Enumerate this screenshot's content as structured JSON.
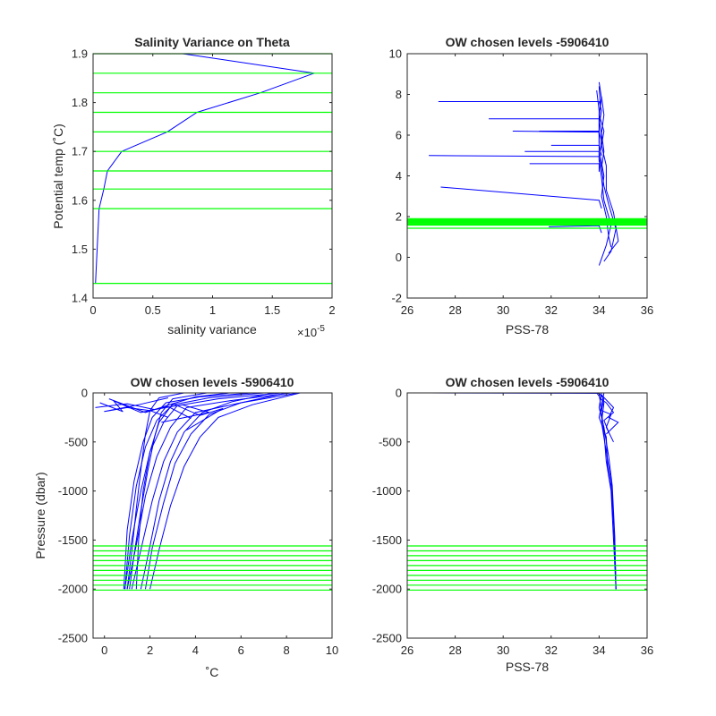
{
  "colors": {
    "data": "#0000ff",
    "levels": "#00ff00",
    "axis": "#262626"
  },
  "chart_data": [
    {
      "id": "p1",
      "type": "line",
      "title": "Salinity Variance on Theta",
      "xlabel": "salinity variance",
      "ylabel": "Potential temp (˚C)",
      "xlim": [
        0,
        2
      ],
      "ylim": [
        1.4,
        1.9
      ],
      "xticks": [
        "0",
        "0.5",
        "1",
        "1.5",
        "2"
      ],
      "xtick_values": [
        0,
        0.5,
        1,
        1.5,
        2
      ],
      "yticks": [
        "1.4",
        "1.5",
        "1.6",
        "1.7",
        "1.8",
        "1.9"
      ],
      "ytick_values": [
        1.4,
        1.5,
        1.6,
        1.7,
        1.8,
        1.9
      ],
      "x_exponent_base": "×10",
      "x_exponent_power": "-5",
      "series": [
        {
          "x": [
            0.02,
            0.05,
            0.09,
            0.12,
            0.24,
            0.62,
            0.87,
            1.4,
            1.85,
            0.75
          ],
          "y": [
            1.43,
            1.583,
            1.623,
            1.66,
            1.7,
            1.74,
            1.78,
            1.82,
            1.86,
            1.9
          ]
        }
      ],
      "hlines": [
        1.43,
        1.583,
        1.623,
        1.66,
        1.7,
        1.74,
        1.78,
        1.82,
        1.86,
        1.9
      ]
    },
    {
      "id": "p2",
      "type": "line",
      "title": "OW chosen levels -5906410",
      "xlabel": "PSS-78",
      "ylabel": "",
      "xlim": [
        26,
        36
      ],
      "ylim": [
        -2,
        10
      ],
      "xticks": [
        "26",
        "28",
        "30",
        "32",
        "34",
        "36"
      ],
      "xtick_values": [
        26,
        28,
        30,
        32,
        34,
        36
      ],
      "yticks": [
        "-2",
        "0",
        "2",
        "4",
        "6",
        "8",
        "10"
      ],
      "ytick_values": [
        -2,
        0,
        2,
        4,
        6,
        8,
        10
      ],
      "series": [
        {
          "x": [
            34.0,
            34.05,
            34.0,
            34.1,
            34.05,
            34.2,
            34.1,
            34.3,
            34.4,
            34.5
          ],
          "y": [
            8.4,
            7.5,
            6.8,
            6.0,
            5.0,
            4.0,
            3.0,
            2.0,
            1.0,
            0.5
          ]
        },
        {
          "x": [
            34.0,
            34.1,
            34.0,
            34.2,
            34.1,
            34.3,
            34.3,
            34.6,
            34.8,
            34.4
          ],
          "y": [
            8.6,
            7.8,
            7.0,
            6.2,
            5.5,
            4.5,
            3.3,
            2.2,
            0.8,
            0.2
          ]
        },
        {
          "x": [
            33.9,
            34.0,
            34.0,
            34.0,
            34.0,
            34.1,
            34.2,
            34.5,
            34.3,
            34.0
          ],
          "y": [
            8.2,
            7.2,
            6.4,
            5.6,
            4.8,
            3.9,
            2.8,
            1.6,
            0.6,
            -0.4
          ]
        },
        {
          "x": [
            34.1,
            34.2,
            34.1,
            34.2,
            34.1,
            34.2,
            34.4,
            34.7,
            34.5,
            34.2
          ],
          "y": [
            7.9,
            7.0,
            6.1,
            5.2,
            4.4,
            3.5,
            2.6,
            1.4,
            0.3,
            -0.2
          ]
        },
        {
          "x": [
            27.3,
            34.0,
            34.1,
            34.0
          ],
          "y": [
            7.65,
            7.65,
            7.2,
            6.5
          ]
        },
        {
          "x": [
            29.4,
            34.0,
            34.0
          ],
          "y": [
            6.8,
            6.8,
            6.0
          ]
        },
        {
          "x": [
            30.4,
            34.0,
            34.1
          ],
          "y": [
            6.2,
            6.15,
            5.7
          ]
        },
        {
          "x": [
            31.5,
            34.0,
            34.0
          ],
          "y": [
            6.2,
            6.2,
            5.6
          ]
        },
        {
          "x": [
            32.0,
            34.0,
            34.1
          ],
          "y": [
            5.5,
            5.5,
            5.0
          ]
        },
        {
          "x": [
            30.9,
            34.0,
            34.0
          ],
          "y": [
            5.2,
            5.2,
            4.7
          ]
        },
        {
          "x": [
            26.9,
            34.0,
            34.1
          ],
          "y": [
            5.0,
            4.95,
            4.4
          ]
        },
        {
          "x": [
            31.1,
            34.0,
            34.0
          ],
          "y": [
            4.6,
            4.6,
            4.2
          ]
        },
        {
          "x": [
            27.4,
            34.0,
            34.1
          ],
          "y": [
            3.45,
            2.8,
            2.4
          ]
        },
        {
          "x": [
            31.9,
            34.0,
            34.1
          ],
          "y": [
            1.5,
            1.55,
            1.2
          ]
        }
      ],
      "hlines": [
        1.43,
        1.583,
        1.623,
        1.66,
        1.7,
        1.74,
        1.78,
        1.82,
        1.86,
        1.9
      ]
    },
    {
      "id": "p3",
      "type": "line",
      "title": "OW chosen levels -5906410",
      "xlabel": "˚C",
      "ylabel": "Pressure (dbar)",
      "xlim": [
        -0.5,
        10
      ],
      "ylim": [
        -2500,
        0
      ],
      "xticks": [
        "0",
        "2",
        "4",
        "6",
        "8",
        "10"
      ],
      "xtick_values": [
        0,
        2,
        4,
        6,
        8,
        10
      ],
      "yticks": [
        "-2500",
        "-2000",
        "-1500",
        "-1000",
        "-500",
        "0"
      ],
      "ytick_values": [
        -2500,
        -2000,
        -1500,
        -1000,
        -500,
        0
      ],
      "series": [
        {
          "x": [
            8.5,
            6.0,
            4.0,
            3.2,
            2.6,
            2.1,
            1.6,
            1.2
          ],
          "y": [
            0,
            -100,
            -200,
            -400,
            -700,
            -1100,
            -1600,
            -2000
          ]
        },
        {
          "x": [
            8.2,
            5.5,
            3.6,
            2.9,
            2.3,
            1.8,
            1.4,
            1.0
          ],
          "y": [
            0,
            -80,
            -150,
            -350,
            -650,
            -1050,
            -1550,
            -2000
          ]
        },
        {
          "x": [
            7.8,
            5.0,
            3.2,
            2.6,
            2.0,
            1.6,
            1.2,
            0.9
          ],
          "y": [
            0,
            -60,
            -130,
            -300,
            -600,
            -1000,
            -1500,
            -2000
          ]
        },
        {
          "x": [
            7.0,
            4.6,
            3.0,
            2.3,
            1.8,
            1.4,
            1.1,
            0.9
          ],
          "y": [
            0,
            -50,
            -120,
            -280,
            -550,
            -950,
            -1450,
            -2000
          ]
        },
        {
          "x": [
            6.5,
            4.2,
            2.7,
            2.1,
            1.7,
            1.3,
            1.0,
            0.85
          ],
          "y": [
            0,
            -40,
            -100,
            -250,
            -500,
            -900,
            -1400,
            -2000
          ]
        },
        {
          "x": [
            8.6,
            6.5,
            5.0,
            4.2,
            3.5,
            2.9,
            2.4,
            2.0
          ],
          "y": [
            0,
            -120,
            -250,
            -450,
            -750,
            -1150,
            -1600,
            -2000
          ]
        },
        {
          "x": [
            8.0,
            6.0,
            4.6,
            3.8,
            3.1,
            2.6,
            2.1,
            1.8
          ],
          "y": [
            0,
            -100,
            -220,
            -420,
            -720,
            -1120,
            -1580,
            -2000
          ]
        },
        {
          "x": [
            7.4,
            5.6,
            4.3,
            3.5,
            2.9,
            2.4,
            2.0,
            1.6
          ],
          "y": [
            0,
            -90,
            -200,
            -400,
            -700,
            -1100,
            -1560,
            -2000
          ]
        },
        {
          "x": [
            5.5,
            4.0,
            3.0,
            2.4,
            2.0,
            1.7,
            1.5,
            1.4
          ],
          "y": [
            0,
            -40,
            -110,
            -300,
            -600,
            -1000,
            -1500,
            -2000
          ]
        },
        {
          "x": [
            4.5,
            3.0,
            2.5,
            2.2,
            1.9,
            1.6,
            1.3,
            1.1
          ],
          "y": [
            0,
            -60,
            -200,
            -450,
            -800,
            -1200,
            -1650,
            -2000
          ]
        },
        {
          "x": [
            3.5,
            2.4,
            2.0,
            1.8,
            1.6,
            1.4,
            1.2,
            1.0
          ],
          "y": [
            0,
            -50,
            -180,
            -420,
            -780,
            -1180,
            -1620,
            -2000
          ]
        },
        {
          "x": [
            2.8,
            1.5,
            0.0,
            1.0,
            2.0,
            2.8
          ],
          "y": [
            -50,
            -120,
            -190,
            -150,
            -180,
            -250
          ]
        },
        {
          "x": [
            -0.4,
            1.0,
            2.2,
            3.4,
            4.6,
            2.5
          ],
          "y": [
            -150,
            -110,
            -170,
            -120,
            -200,
            -300
          ]
        },
        {
          "x": [
            -0.2,
            0.8,
            0.4,
            1.6,
            2.8,
            3.8
          ],
          "y": [
            -100,
            -190,
            -80,
            -200,
            -140,
            -260
          ]
        },
        {
          "x": [
            0.2,
            1.8,
            3.0,
            4.2,
            5.2,
            3.6
          ],
          "y": [
            -60,
            -200,
            -110,
            -230,
            -160,
            -380
          ]
        }
      ],
      "hlines": [
        -1560,
        -1610,
        -1660,
        -1710,
        -1760,
        -1810,
        -1860,
        -1910,
        -1960,
        -2010
      ]
    },
    {
      "id": "p4",
      "type": "line",
      "title": "OW chosen levels -5906410",
      "xlabel": "PSS-78",
      "ylabel": "",
      "xlim": [
        26,
        36
      ],
      "ylim": [
        -2500,
        0
      ],
      "xticks": [
        "26",
        "28",
        "30",
        "32",
        "34",
        "36"
      ],
      "xtick_values": [
        26,
        28,
        30,
        32,
        34,
        36
      ],
      "yticks": [
        "-2500",
        "-2000",
        "-1500",
        "-1000",
        "-500",
        "0"
      ],
      "ytick_values": [
        -2500,
        -2000,
        -1500,
        -1000,
        -500,
        0
      ],
      "series": [
        {
          "x": [
            34.0,
            34.1,
            34.2,
            34.3,
            34.5,
            34.6,
            34.7
          ],
          "y": [
            0,
            -200,
            -400,
            -700,
            -1000,
            -1500,
            -2000
          ]
        },
        {
          "x": [
            34.1,
            34.0,
            34.2,
            34.4,
            34.55,
            34.65,
            34.7
          ],
          "y": [
            0,
            -150,
            -350,
            -650,
            -950,
            -1450,
            -2000
          ]
        },
        {
          "x": [
            33.9,
            34.2,
            34.1,
            34.3,
            34.5,
            34.62,
            34.7
          ],
          "y": [
            0,
            -100,
            -300,
            -600,
            -900,
            -1400,
            -2000
          ]
        },
        {
          "x": [
            34.2,
            34.0,
            34.3,
            34.35,
            34.55,
            34.66,
            34.7
          ],
          "y": [
            0,
            -250,
            -450,
            -750,
            -1050,
            -1550,
            -2000
          ]
        },
        {
          "x": [
            34.0,
            34.3,
            34.6,
            34.2,
            34.4
          ],
          "y": [
            -50,
            -100,
            -200,
            -280,
            -400
          ]
        },
        {
          "x": [
            34.1,
            34.6,
            34.4,
            34.8,
            34.3
          ],
          "y": [
            -20,
            -150,
            -250,
            -300,
            -420
          ]
        },
        {
          "x": [
            34.2,
            34.1,
            34.5,
            34.3,
            34.6
          ],
          "y": [
            -60,
            -180,
            -220,
            -350,
            -500
          ]
        },
        {
          "x": [
            26.9,
            34.0,
            34.2
          ],
          "y": [
            0,
            -5,
            -60
          ]
        }
      ],
      "hlines": [
        -1560,
        -1610,
        -1660,
        -1710,
        -1760,
        -1810,
        -1860,
        -1910,
        -1960,
        -2010
      ]
    }
  ]
}
